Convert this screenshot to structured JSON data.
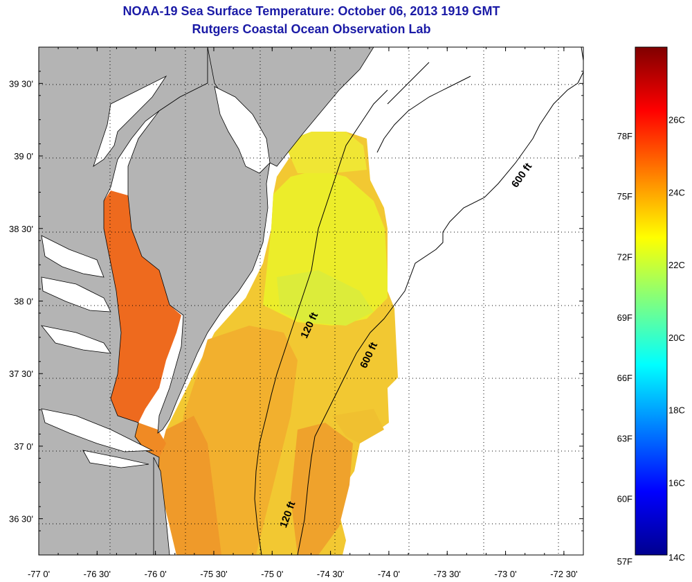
{
  "title": "NOAA-19 Sea Surface Temperature:  October 06, 2013 1919 GMT",
  "subtitle": "Rutgers Coastal Ocean Observation Lab",
  "map": {
    "lon_min": -77.0,
    "lon_max": -72.3333,
    "lat_min": 36.25,
    "lat_max": 39.75,
    "lon_ticks": [
      {
        "value": -77.0,
        "label": "-77 0'"
      },
      {
        "value": -76.5,
        "label": "-76 30'"
      },
      {
        "value": -76.0,
        "label": "-76 0'"
      },
      {
        "value": -75.5,
        "label": "-75 30'"
      },
      {
        "value": -75.0,
        "label": "-75 0'"
      },
      {
        "value": -74.5,
        "label": "-74 30'"
      },
      {
        "value": -74.0,
        "label": "-74 0'"
      },
      {
        "value": -73.5,
        "label": "-73 30'"
      },
      {
        "value": -73.0,
        "label": "-73 0'"
      },
      {
        "value": -72.5,
        "label": "-72 30'"
      }
    ],
    "lat_ticks": [
      {
        "value": 39.5,
        "label": "39 30'"
      },
      {
        "value": 39.0,
        "label": "39 0'"
      },
      {
        "value": 38.5,
        "label": "38 30'"
      },
      {
        "value": 38.0,
        "label": "38 0'"
      },
      {
        "value": 37.5,
        "label": "37 30'"
      },
      {
        "value": 37.0,
        "label": "37 0'"
      },
      {
        "value": 36.5,
        "label": "36 30'"
      }
    ],
    "contour_labels": [
      "600 ft",
      "120 ft",
      "600 ft",
      "120 ft"
    ],
    "land_color": "#b4b4b4",
    "nodata_color": "#ffffff"
  },
  "colorbar": {
    "min_c": 14,
    "max_c": 28,
    "celsius_ticks": [
      {
        "value": 26,
        "label": "26C"
      },
      {
        "value": 24,
        "label": "24C"
      },
      {
        "value": 22,
        "label": "22C"
      },
      {
        "value": 20,
        "label": "20C"
      },
      {
        "value": 18,
        "label": "18C"
      },
      {
        "value": 16,
        "label": "16C"
      },
      {
        "value": 14,
        "label": "14C"
      }
    ],
    "fahrenheit_ticks": [
      {
        "value": 78,
        "label": "78F"
      },
      {
        "value": 75,
        "label": "75F"
      },
      {
        "value": 72,
        "label": "72F"
      },
      {
        "value": 69,
        "label": "69F"
      },
      {
        "value": 66,
        "label": "66F"
      },
      {
        "value": 63,
        "label": "63F"
      },
      {
        "value": 60,
        "label": "60F"
      },
      {
        "value": 57,
        "label": "57F"
      }
    ]
  }
}
